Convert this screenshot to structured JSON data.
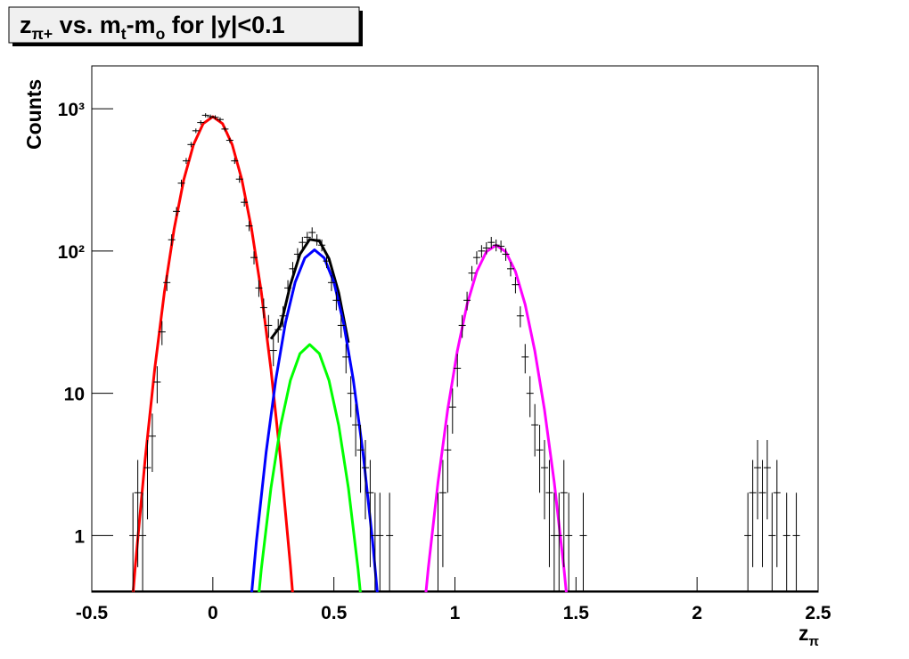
{
  "chart_data": {
    "type": "scatter",
    "title": [
      "z",
      "π+",
      " vs. m",
      "t",
      "-m",
      "o",
      " for |y|<0.1"
    ],
    "x_label": [
      "z",
      "π"
    ],
    "y_label": "Counts",
    "xlim": [
      -0.5,
      2.5
    ],
    "xticks": [
      -0.5,
      0,
      0.5,
      1,
      1.5,
      2,
      2.5
    ],
    "ylim": [
      0.4,
      2000
    ],
    "log_y": true,
    "yticks": [
      1,
      10,
      {
        "value": 100,
        "label": "10²"
      },
      {
        "value": 1000,
        "label": "10³"
      }
    ],
    "data": {
      "color": "#000000",
      "x": [
        -0.33,
        -0.31,
        -0.29,
        -0.27,
        -0.25,
        -0.23,
        -0.21,
        -0.19,
        -0.17,
        -0.15,
        -0.13,
        -0.11,
        -0.09,
        -0.07,
        -0.05,
        -0.03,
        -0.01,
        0.01,
        0.03,
        0.05,
        0.07,
        0.09,
        0.11,
        0.13,
        0.15,
        0.17,
        0.19,
        0.21,
        0.23,
        0.25,
        0.27,
        0.29,
        0.31,
        0.33,
        0.35,
        0.37,
        0.39,
        0.41,
        0.43,
        0.45,
        0.47,
        0.49,
        0.51,
        0.53,
        0.55,
        0.57,
        0.59,
        0.61,
        0.63,
        0.65,
        0.67,
        0.69,
        0.73,
        0.93,
        0.95,
        0.97,
        0.99,
        1.01,
        1.03,
        1.05,
        1.07,
        1.09,
        1.11,
        1.13,
        1.15,
        1.17,
        1.19,
        1.21,
        1.23,
        1.25,
        1.27,
        1.29,
        1.31,
        1.33,
        1.35,
        1.37,
        1.39,
        1.41,
        1.43,
        1.45,
        1.47,
        1.53,
        2.21,
        2.23,
        2.25,
        2.27,
        2.29,
        2.31,
        2.33,
        2.37,
        2.41
      ],
      "values": [
        1,
        2,
        1,
        3,
        5,
        12,
        27,
        60,
        120,
        190,
        300,
        430,
        560,
        700,
        800,
        900,
        880,
        870,
        840,
        720,
        600,
        430,
        320,
        220,
        150,
        90,
        55,
        40,
        30,
        20,
        28,
        35,
        55,
        75,
        95,
        115,
        125,
        135,
        120,
        110,
        85,
        60,
        45,
        30,
        18,
        10,
        6,
        4,
        3,
        2,
        1,
        1,
        1,
        1,
        2,
        4,
        8,
        15,
        30,
        45,
        70,
        90,
        100,
        105,
        115,
        110,
        108,
        95,
        75,
        58,
        35,
        18,
        10,
        6,
        4,
        3,
        2,
        1,
        1,
        2,
        1,
        1,
        1,
        2,
        3,
        2,
        3,
        1,
        2,
        1,
        1
      ],
      "errors": [
        1,
        1.4,
        1,
        1.7,
        2.2,
        3.5,
        5.2,
        7.7,
        11,
        13.8,
        17.3,
        20.7,
        23.7,
        26.5,
        28.3,
        30,
        29.7,
        29.5,
        29,
        26.8,
        24.5,
        20.7,
        17.9,
        14.8,
        12.2,
        9.5,
        7.4,
        6.3,
        5.5,
        4.5,
        5.3,
        5.9,
        7.4,
        8.7,
        9.7,
        10.7,
        11.2,
        11.6,
        11,
        10.5,
        9.2,
        7.7,
        6.7,
        5.5,
        4.2,
        3.2,
        2.4,
        2,
        1.7,
        1.4,
        1,
        1,
        1,
        1,
        1.4,
        2,
        2.8,
        3.9,
        5.5,
        6.7,
        8.4,
        9.5,
        10,
        10.2,
        10.7,
        10.5,
        10.4,
        9.7,
        8.7,
        7.6,
        5.9,
        4.2,
        3.2,
        2.4,
        2,
        1.7,
        1.4,
        1,
        1,
        1.4,
        1,
        1,
        1,
        1.4,
        1.7,
        1.4,
        1.7,
        1,
        1.4,
        1,
        1
      ]
    },
    "fits": [
      {
        "color": "#ff0000",
        "x": [
          -0.34,
          -0.32,
          -0.28,
          -0.24,
          -0.2,
          -0.16,
          -0.12,
          -0.08,
          -0.04,
          0,
          0.04,
          0.08,
          0.12,
          0.16,
          0.2,
          0.24,
          0.28,
          0.32,
          0.34
        ],
        "values": [
          0.24,
          0.62,
          3.4,
          14.8,
          51.6,
          143,
          317,
          559,
          786,
          880,
          786,
          559,
          317,
          143,
          51.6,
          14.8,
          3.4,
          0.62,
          0.24
        ]
      },
      {
        "color": "#00ff00",
        "x": [
          0.16,
          0.2,
          0.24,
          0.28,
          0.32,
          0.36,
          0.4,
          0.44,
          0.48,
          0.52,
          0.56,
          0.6,
          0.64
        ],
        "values": [
          0.117,
          0.58,
          2.15,
          5.94,
          12.3,
          19.0,
          22,
          19.0,
          12.3,
          5.94,
          2.15,
          0.58,
          0.117
        ]
      },
      {
        "color": "#000000",
        "x": [
          0.24,
          0.28,
          0.32,
          0.36,
          0.4,
          0.44,
          0.48,
          0.52,
          0.56
        ],
        "values": [
          24.1,
          29.8,
          57.8,
          95,
          120.7,
          117.7,
          88.3,
          50.8,
          22.7
        ]
      },
      {
        "color": "#0000ff",
        "x": [
          0.14,
          0.18,
          0.22,
          0.26,
          0.3,
          0.34,
          0.38,
          0.42,
          0.46,
          0.5,
          0.54,
          0.58,
          0.62,
          0.66,
          0.7
        ],
        "values": [
          0.165,
          0.91,
          3.84,
          12.5,
          31.3,
          60.4,
          89.5,
          102,
          89.5,
          60.4,
          31.3,
          12.5,
          3.84,
          0.91,
          0.165
        ]
      },
      {
        "color": "#ff00ff",
        "x": [
          0.85,
          0.89,
          0.93,
          0.97,
          1.01,
          1.05,
          1.09,
          1.13,
          1.17,
          1.21,
          1.25,
          1.29,
          1.33,
          1.37,
          1.41,
          1.45,
          1.49
        ],
        "values": [
          0.12,
          0.59,
          2.37,
          7.64,
          19.9,
          42.1,
          71.8,
          98.9,
          110,
          98.9,
          71.8,
          42.1,
          19.9,
          7.64,
          2.37,
          0.59,
          0.12
        ]
      }
    ]
  }
}
